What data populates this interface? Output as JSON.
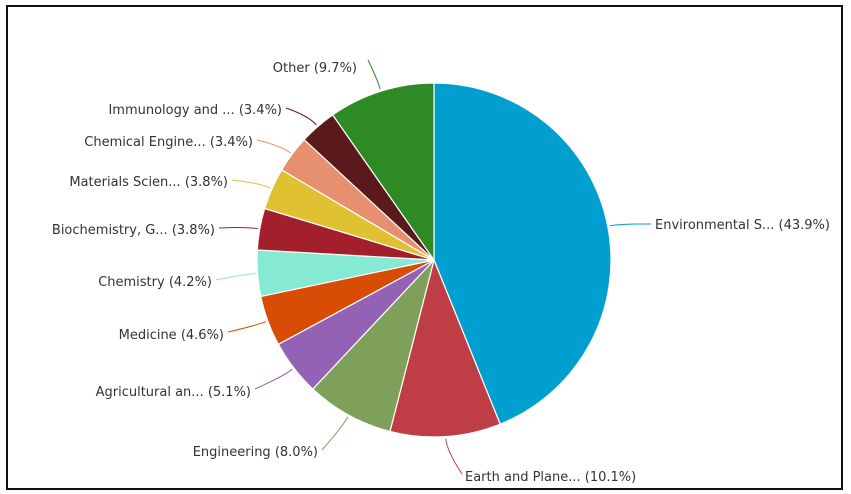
{
  "chart_data": {
    "type": "pie",
    "title": "",
    "legend": "none",
    "slices": [
      {
        "label": "Environmental S...",
        "value": 43.9,
        "display": "Environmental S... (43.9%)",
        "color": "#009fcf"
      },
      {
        "label": "Earth and Plane...",
        "value": 10.1,
        "display": "Earth and Plane... (10.1%)",
        "color": "#bf3d44"
      },
      {
        "label": "Engineering",
        "value": 8.0,
        "display": "Engineering (8.0%)",
        "color": "#7fa05a"
      },
      {
        "label": "Agricultural an...",
        "value": 5.1,
        "display": "Agricultural an... (5.1%)",
        "color": "#9362b5"
      },
      {
        "label": "Medicine",
        "value": 4.6,
        "display": "Medicine (4.6%)",
        "color": "#d94c05"
      },
      {
        "label": "Chemistry",
        "value": 4.2,
        "display": "Chemistry (4.2%)",
        "color": "#86e9d3"
      },
      {
        "label": "Biochemistry, G...",
        "value": 3.8,
        "display": "Biochemistry, G... (3.8%)",
        "color": "#a21f2b"
      },
      {
        "label": "Materials Scien...",
        "value": 3.8,
        "display": "Materials Scien... (3.8%)",
        "color": "#dfc132"
      },
      {
        "label": "Chemical Engine...",
        "value": 3.4,
        "display": "Chemical Engine... (3.4%)",
        "color": "#e6906f"
      },
      {
        "label": "Immunology and ...",
        "value": 3.4,
        "display": "Immunology and ... (3.4%)",
        "color": "#5a1a1c"
      },
      {
        "label": "Other",
        "value": 9.7,
        "display": "Other (9.7%)",
        "color": "#2d8a25"
      }
    ]
  }
}
